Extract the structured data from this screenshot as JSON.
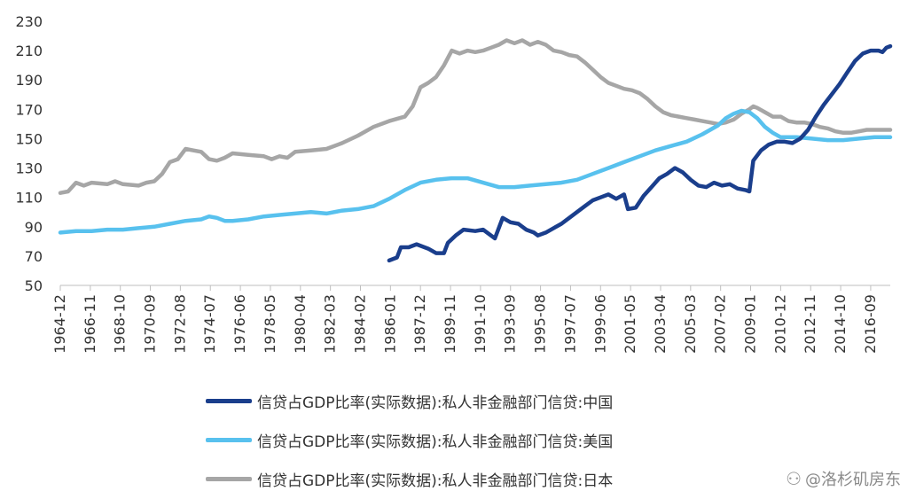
{
  "chart_data": {
    "type": "line",
    "title": "",
    "xlabel": "",
    "ylabel": "",
    "ylim": [
      50,
      230
    ],
    "yticks": [
      50,
      70,
      90,
      110,
      130,
      150,
      170,
      190,
      210,
      230
    ],
    "x_start": "1964-12",
    "x_end": "2017-12",
    "x_tick_labels": [
      "1964-12",
      "1966-11",
      "1968-10",
      "1970-09",
      "1972-08",
      "1974-07",
      "1976-06",
      "1978-05",
      "1980-04",
      "1982-03",
      "1984-02",
      "1986-01",
      "1987-12",
      "1989-11",
      "1991-10",
      "1993-09",
      "1995-08",
      "1997-07",
      "1999-06",
      "2001-05",
      "2003-04",
      "2005-03",
      "2007-02",
      "2009-01",
      "2010-12",
      "2012-11",
      "2014-10",
      "2016-09"
    ],
    "grid": false,
    "legend_position": "bottom",
    "series": [
      {
        "name": "信贷占GDP比率(实际数据):私人非金融部门信贷:中国",
        "color": "#1a3e8c",
        "points": [
          [
            "1985-12",
            67
          ],
          [
            "1986-06",
            69
          ],
          [
            "1986-09",
            76
          ],
          [
            "1987-03",
            76
          ],
          [
            "1987-09",
            78
          ],
          [
            "1988-06",
            75
          ],
          [
            "1988-12",
            72
          ],
          [
            "1989-06",
            72
          ],
          [
            "1989-09",
            79
          ],
          [
            "1990-03",
            84
          ],
          [
            "1990-09",
            88
          ],
          [
            "1991-06",
            87
          ],
          [
            "1991-12",
            88
          ],
          [
            "1992-06",
            84
          ],
          [
            "1992-09",
            82
          ],
          [
            "1993-03",
            96
          ],
          [
            "1993-09",
            93
          ],
          [
            "1994-03",
            92
          ],
          [
            "1994-09",
            88
          ],
          [
            "1995-03",
            86
          ],
          [
            "1995-06",
            84
          ],
          [
            "1995-12",
            86
          ],
          [
            "1996-06",
            89
          ],
          [
            "1996-12",
            92
          ],
          [
            "1997-06",
            96
          ],
          [
            "1997-12",
            100
          ],
          [
            "1998-06",
            104
          ],
          [
            "1998-12",
            108
          ],
          [
            "1999-06",
            110
          ],
          [
            "1999-12",
            112
          ],
          [
            "2000-06",
            109
          ],
          [
            "2000-12",
            112
          ],
          [
            "2001-03",
            102
          ],
          [
            "2001-09",
            103
          ],
          [
            "2002-03",
            111
          ],
          [
            "2002-09",
            117
          ],
          [
            "2003-03",
            123
          ],
          [
            "2003-09",
            126
          ],
          [
            "2004-03",
            130
          ],
          [
            "2004-09",
            127
          ],
          [
            "2005-03",
            122
          ],
          [
            "2005-09",
            118
          ],
          [
            "2006-03",
            117
          ],
          [
            "2006-09",
            120
          ],
          [
            "2007-03",
            118
          ],
          [
            "2007-09",
            119
          ],
          [
            "2008-03",
            116
          ],
          [
            "2008-09",
            115
          ],
          [
            "2008-12",
            114
          ],
          [
            "2009-03",
            135
          ],
          [
            "2009-09",
            142
          ],
          [
            "2010-03",
            146
          ],
          [
            "2010-09",
            148
          ],
          [
            "2011-03",
            148
          ],
          [
            "2011-09",
            147
          ],
          [
            "2012-03",
            150
          ],
          [
            "2012-09",
            156
          ],
          [
            "2013-03",
            165
          ],
          [
            "2013-09",
            173
          ],
          [
            "2014-03",
            180
          ],
          [
            "2014-09",
            187
          ],
          [
            "2015-03",
            195
          ],
          [
            "2015-09",
            203
          ],
          [
            "2016-03",
            208
          ],
          [
            "2016-09",
            210
          ],
          [
            "2017-03",
            210
          ],
          [
            "2017-06",
            209
          ],
          [
            "2017-09",
            212
          ],
          [
            "2017-12",
            213
          ]
        ]
      },
      {
        "name": "信贷占GDP比率(实际数据):私人非金融部门信贷:美国",
        "color": "#58c1ee",
        "points": [
          [
            "1964-12",
            86
          ],
          [
            "1965-12",
            87
          ],
          [
            "1966-12",
            87
          ],
          [
            "1967-12",
            88
          ],
          [
            "1968-12",
            88
          ],
          [
            "1969-12",
            89
          ],
          [
            "1970-12",
            90
          ],
          [
            "1971-12",
            92
          ],
          [
            "1972-12",
            94
          ],
          [
            "1973-12",
            95
          ],
          [
            "1974-06",
            97
          ],
          [
            "1974-12",
            96
          ],
          [
            "1975-06",
            94
          ],
          [
            "1975-12",
            94
          ],
          [
            "1976-12",
            95
          ],
          [
            "1977-12",
            97
          ],
          [
            "1978-12",
            98
          ],
          [
            "1979-12",
            99
          ],
          [
            "1980-12",
            100
          ],
          [
            "1981-12",
            99
          ],
          [
            "1982-12",
            101
          ],
          [
            "1983-12",
            102
          ],
          [
            "1984-12",
            104
          ],
          [
            "1985-12",
            109
          ],
          [
            "1986-12",
            115
          ],
          [
            "1987-12",
            120
          ],
          [
            "1988-12",
            122
          ],
          [
            "1989-12",
            123
          ],
          [
            "1990-12",
            123
          ],
          [
            "1991-12",
            120
          ],
          [
            "1992-12",
            117
          ],
          [
            "1993-12",
            117
          ],
          [
            "1994-12",
            118
          ],
          [
            "1995-12",
            119
          ],
          [
            "1996-12",
            120
          ],
          [
            "1997-12",
            122
          ],
          [
            "1998-12",
            126
          ],
          [
            "1999-12",
            130
          ],
          [
            "2000-12",
            134
          ],
          [
            "2001-12",
            138
          ],
          [
            "2002-12",
            142
          ],
          [
            "2003-12",
            145
          ],
          [
            "2004-12",
            148
          ],
          [
            "2005-12",
            153
          ],
          [
            "2006-12",
            159
          ],
          [
            "2007-06",
            164
          ],
          [
            "2007-12",
            167
          ],
          [
            "2008-06",
            169
          ],
          [
            "2008-12",
            168
          ],
          [
            "2009-06",
            164
          ],
          [
            "2009-12",
            158
          ],
          [
            "2010-06",
            154
          ],
          [
            "2010-12",
            151
          ],
          [
            "2011-12",
            151
          ],
          [
            "2012-12",
            150
          ],
          [
            "2013-12",
            149
          ],
          [
            "2014-12",
            149
          ],
          [
            "2015-12",
            150
          ],
          [
            "2016-12",
            151
          ],
          [
            "2017-12",
            151
          ]
        ]
      },
      {
        "name": "信贷占GDP比率(实际数据):私人非金融部门信贷:日本",
        "color": "#a6a6a6",
        "points": [
          [
            "1964-12",
            113
          ],
          [
            "1965-06",
            114
          ],
          [
            "1965-12",
            120
          ],
          [
            "1966-06",
            118
          ],
          [
            "1966-12",
            120
          ],
          [
            "1967-12",
            119
          ],
          [
            "1968-06",
            121
          ],
          [
            "1968-12",
            119
          ],
          [
            "1969-12",
            118
          ],
          [
            "1970-06",
            120
          ],
          [
            "1970-12",
            121
          ],
          [
            "1971-06",
            126
          ],
          [
            "1971-12",
            134
          ],
          [
            "1972-06",
            136
          ],
          [
            "1972-12",
            143
          ],
          [
            "1973-06",
            142
          ],
          [
            "1973-12",
            141
          ],
          [
            "1974-06",
            136
          ],
          [
            "1974-12",
            135
          ],
          [
            "1975-06",
            137
          ],
          [
            "1975-12",
            140
          ],
          [
            "1976-12",
            139
          ],
          [
            "1977-12",
            138
          ],
          [
            "1978-06",
            136
          ],
          [
            "1978-12",
            138
          ],
          [
            "1979-06",
            137
          ],
          [
            "1979-12",
            141
          ],
          [
            "1980-12",
            142
          ],
          [
            "1981-12",
            143
          ],
          [
            "1982-12",
            147
          ],
          [
            "1983-12",
            152
          ],
          [
            "1984-12",
            158
          ],
          [
            "1985-12",
            162
          ],
          [
            "1986-12",
            165
          ],
          [
            "1987-06",
            172
          ],
          [
            "1987-12",
            185
          ],
          [
            "1988-06",
            188
          ],
          [
            "1988-12",
            192
          ],
          [
            "1989-06",
            200
          ],
          [
            "1989-12",
            210
          ],
          [
            "1990-06",
            208
          ],
          [
            "1990-12",
            210
          ],
          [
            "1991-06",
            209
          ],
          [
            "1991-12",
            210
          ],
          [
            "1992-06",
            212
          ],
          [
            "1992-12",
            214
          ],
          [
            "1993-06",
            217
          ],
          [
            "1993-12",
            215
          ],
          [
            "1994-06",
            217
          ],
          [
            "1994-12",
            214
          ],
          [
            "1995-06",
            216
          ],
          [
            "1995-12",
            214
          ],
          [
            "1996-06",
            210
          ],
          [
            "1996-12",
            209
          ],
          [
            "1997-06",
            207
          ],
          [
            "1997-12",
            206
          ],
          [
            "1998-06",
            202
          ],
          [
            "1998-12",
            197
          ],
          [
            "1999-06",
            192
          ],
          [
            "1999-12",
            188
          ],
          [
            "2000-06",
            186
          ],
          [
            "2000-12",
            184
          ],
          [
            "2001-06",
            183
          ],
          [
            "2001-12",
            181
          ],
          [
            "2002-06",
            177
          ],
          [
            "2002-12",
            172
          ],
          [
            "2003-06",
            168
          ],
          [
            "2003-12",
            166
          ],
          [
            "2004-06",
            165
          ],
          [
            "2004-12",
            164
          ],
          [
            "2005-06",
            163
          ],
          [
            "2005-12",
            162
          ],
          [
            "2006-06",
            161
          ],
          [
            "2006-12",
            160
          ],
          [
            "2007-06",
            161
          ],
          [
            "2007-12",
            163
          ],
          [
            "2008-06",
            167
          ],
          [
            "2008-12",
            170
          ],
          [
            "2009-03",
            172
          ],
          [
            "2009-06",
            171
          ],
          [
            "2009-12",
            168
          ],
          [
            "2010-06",
            165
          ],
          [
            "2010-12",
            165
          ],
          [
            "2011-06",
            162
          ],
          [
            "2011-12",
            161
          ],
          [
            "2012-06",
            161
          ],
          [
            "2012-12",
            160
          ],
          [
            "2013-06",
            158
          ],
          [
            "2013-12",
            157
          ],
          [
            "2014-06",
            155
          ],
          [
            "2014-12",
            154
          ],
          [
            "2015-06",
            154
          ],
          [
            "2015-12",
            155
          ],
          [
            "2016-06",
            156
          ],
          [
            "2016-12",
            156
          ],
          [
            "2017-06",
            156
          ],
          [
            "2017-12",
            156
          ]
        ]
      }
    ]
  },
  "watermark": {
    "icon": "weibo-icon",
    "text": "@洛杉矶房东"
  }
}
